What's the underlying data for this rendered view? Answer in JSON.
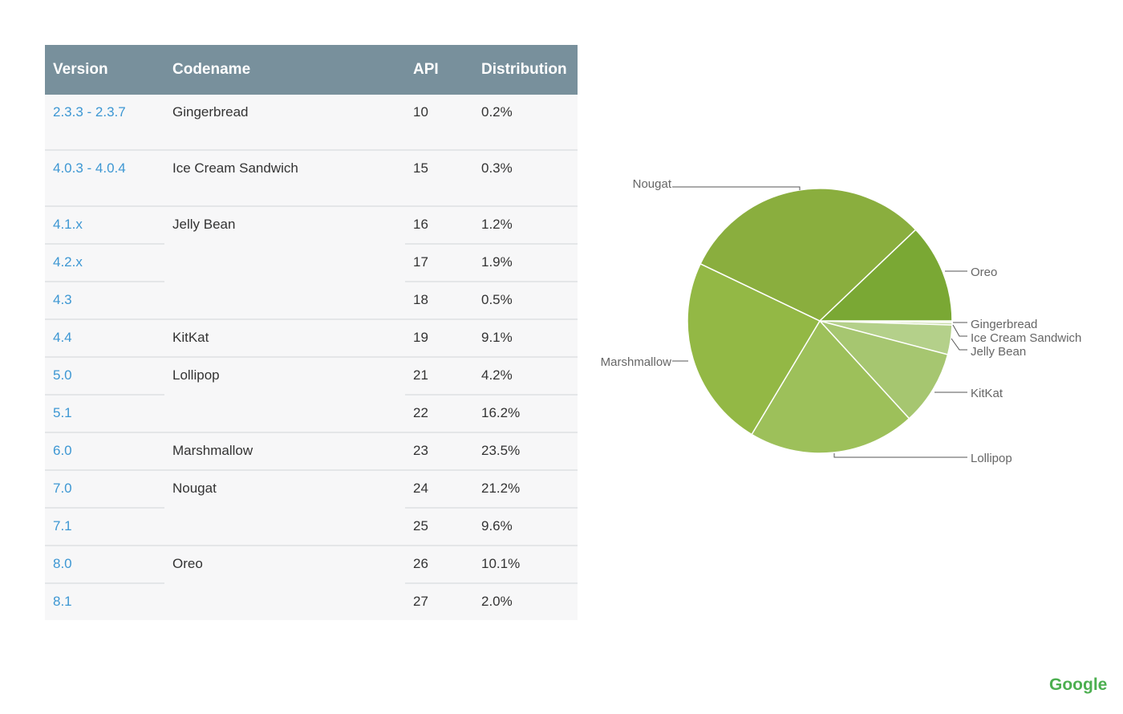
{
  "chart_data": [
    {
      "type": "table",
      "columns": [
        "Version",
        "Codename",
        "API",
        "Distribution"
      ],
      "rows": [
        {
          "version": "2.3.3 - 2.3.7",
          "codename": "Gingerbread",
          "api": "10",
          "distribution": "0.2%"
        },
        {
          "version": "4.0.3 - 4.0.4",
          "codename": "Ice Cream Sandwich",
          "api": "15",
          "distribution": "0.3%"
        },
        {
          "version": "4.1.x",
          "codename": "Jelly Bean",
          "api": "16",
          "distribution": "1.2%"
        },
        {
          "version": "4.2.x",
          "codename": "",
          "api": "17",
          "distribution": "1.9%"
        },
        {
          "version": "4.3",
          "codename": "",
          "api": "18",
          "distribution": "0.5%"
        },
        {
          "version": "4.4",
          "codename": "KitKat",
          "api": "19",
          "distribution": "9.1%"
        },
        {
          "version": "5.0",
          "codename": "Lollipop",
          "api": "21",
          "distribution": "4.2%"
        },
        {
          "version": "5.1",
          "codename": "",
          "api": "22",
          "distribution": "16.2%"
        },
        {
          "version": "6.0",
          "codename": "Marshmallow",
          "api": "23",
          "distribution": "23.5%"
        },
        {
          "version": "7.0",
          "codename": "Nougat",
          "api": "24",
          "distribution": "21.2%"
        },
        {
          "version": "7.1",
          "codename": "",
          "api": "25",
          "distribution": "9.6%"
        },
        {
          "version": "8.0",
          "codename": "Oreo",
          "api": "26",
          "distribution": "10.1%"
        },
        {
          "version": "8.1",
          "codename": "",
          "api": "27",
          "distribution": "2.0%"
        }
      ],
      "header_color": "#78909c",
      "link_color": "#3d97d3"
    },
    {
      "type": "pie",
      "start": "3 o'clock, clockwise",
      "slices": [
        {
          "label": "Gingerbread",
          "value": 0.2,
          "color": "#d3e3b8"
        },
        {
          "label": "Ice Cream Sandwich",
          "value": 0.3,
          "color": "#c6dba3"
        },
        {
          "label": "Jelly Bean",
          "value": 3.6,
          "color": "#b4d08a"
        },
        {
          "label": "KitKat",
          "value": 9.1,
          "color": "#a6c670"
        },
        {
          "label": "Lollipop",
          "value": 20.4,
          "color": "#9dc05a"
        },
        {
          "label": "Marshmallow",
          "value": 23.5,
          "color": "#93b845"
        },
        {
          "label": "Nougat",
          "value": 30.8,
          "color": "#8aae3e"
        },
        {
          "label": "Oreo",
          "value": 12.1,
          "color": "#7aa834"
        }
      ]
    }
  ],
  "branding": {
    "logo": "Google",
    "logo_color": "#4caf50"
  }
}
